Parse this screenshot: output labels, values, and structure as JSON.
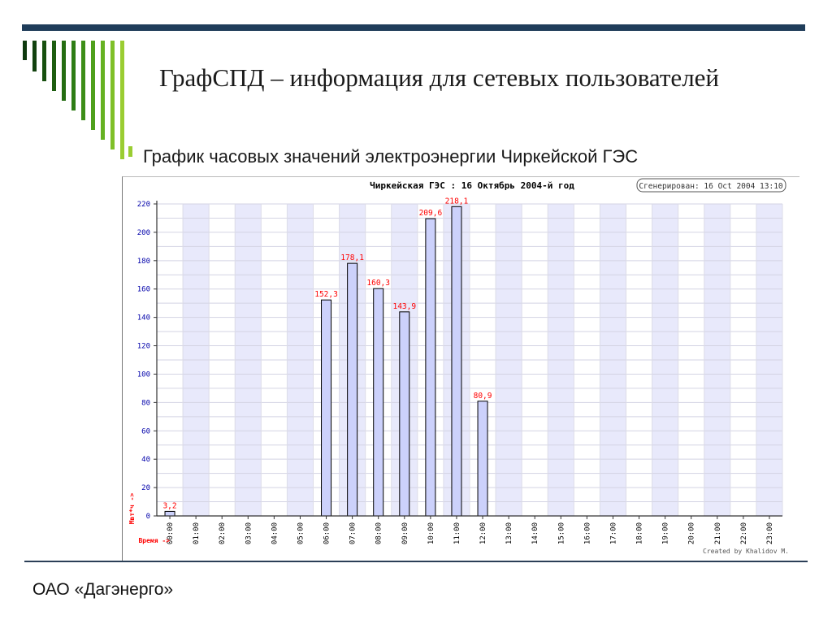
{
  "slide": {
    "title": "ГрафСПД – информация для сетевых пользователей",
    "subtitle": "График часовых значений электроэнергии Чиркейской ГЭС",
    "footer": "ОАО «Дагэнерго»"
  },
  "chart_data": {
    "type": "bar",
    "title": "Чиркейская ГЭС : 16  Октябрь 2004-й год",
    "generated_label": "Сгенерирован: 16 Oct 2004 13:10",
    "credit": "Created by Khalidov M.",
    "ylabel": "Мвт*ч ->",
    "xlabel": "Время ->",
    "ylim": [
      0,
      220
    ],
    "yticks": [
      0,
      20,
      40,
      60,
      80,
      100,
      120,
      140,
      160,
      180,
      200,
      220
    ],
    "categories": [
      "00:00",
      "01:00",
      "02:00",
      "03:00",
      "04:00",
      "05:00",
      "06:00",
      "07:00",
      "08:00",
      "09:00",
      "10:00",
      "11:00",
      "12:00",
      "13:00",
      "14:00",
      "15:00",
      "16:00",
      "17:00",
      "18:00",
      "19:00",
      "20:00",
      "21:00",
      "22:00",
      "23:00"
    ],
    "values": [
      3.2,
      null,
      null,
      null,
      null,
      null,
      152.3,
      178.1,
      160.3,
      143.9,
      209.6,
      218.1,
      80.9,
      null,
      null,
      null,
      null,
      null,
      null,
      null,
      null,
      null,
      null,
      null
    ],
    "value_labels": [
      "3,2",
      "",
      "",
      "",
      "",
      "",
      "152,3",
      "178,1",
      "160,3",
      "143,9",
      "209,6",
      "218,1",
      "80,9",
      "",
      "",
      "",
      "",
      "",
      "",
      "",
      "",
      "",
      "",
      ""
    ],
    "grid": true,
    "colors": {
      "bar_fill": "#ccd1fb",
      "bar_stroke": "#000000",
      "value_label": "#ff0000",
      "axis_label": "#ff0000",
      "tick_label": "#0000aa",
      "band": "#e8e9fb"
    }
  }
}
